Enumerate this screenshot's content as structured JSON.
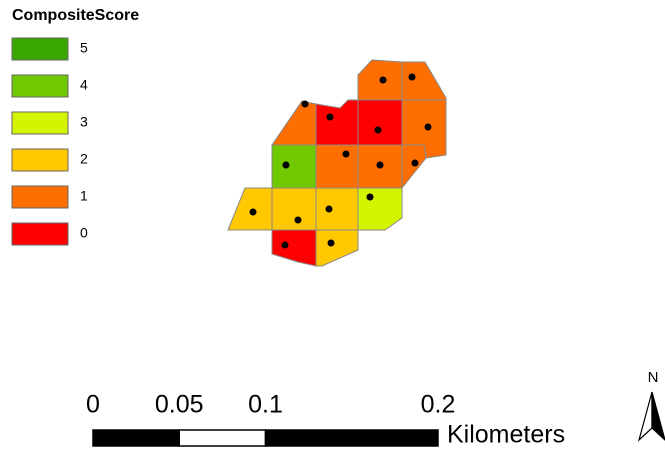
{
  "legend": {
    "title": "CompositeScore",
    "values": [
      5,
      4,
      3,
      2,
      1,
      0
    ],
    "colors": [
      "#38a800",
      "#70c800",
      "#d4f500",
      "#ffc800",
      "#ff6e00",
      "#ff0000"
    ]
  },
  "cells": [
    1,
    1,
    1,
    0,
    0,
    1,
    4,
    1,
    1,
    1,
    2,
    2,
    2,
    3,
    0,
    2
  ],
  "scale_bar": {
    "ticks": [
      0,
      0.05,
      0.1,
      0.2
    ],
    "unit": "Kilometers"
  },
  "north_arrow": "N"
}
